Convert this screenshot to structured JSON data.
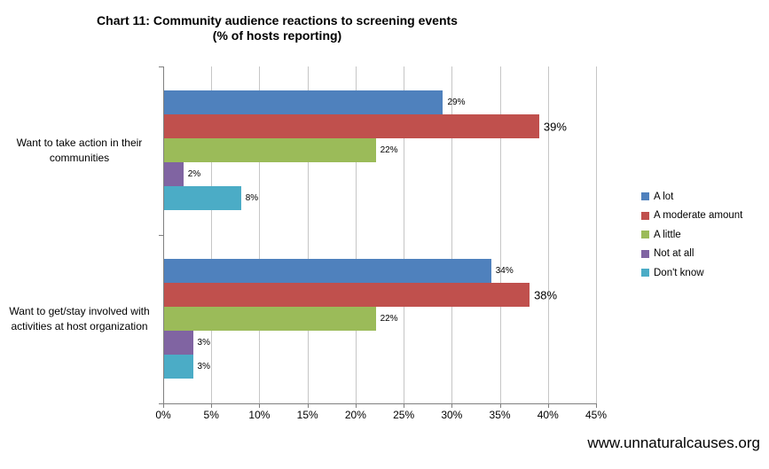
{
  "title": {
    "line1": "Chart 11: Community audience reactions to screening events",
    "line2": "(% of hosts reporting)"
  },
  "footer": {
    "url": "www.unnaturalcauses.org"
  },
  "chart_data": {
    "type": "bar",
    "orientation": "horizontal",
    "title": "Chart 11: Community audience reactions to screening events (% of hosts reporting)",
    "categories": [
      "Want to take action in their communities",
      "Want to get/stay involved with activities at host organization"
    ],
    "series": [
      {
        "name": "A lot",
        "color": "#4F81BD",
        "values": [
          29,
          34
        ]
      },
      {
        "name": "A moderate amount",
        "color": "#C0504D",
        "values": [
          39,
          38
        ]
      },
      {
        "name": "A little",
        "color": "#9BBB59",
        "values": [
          22,
          22
        ]
      },
      {
        "name": "Not at all",
        "color": "#8064A2",
        "values": [
          2,
          3
        ]
      },
      {
        "name": "Don't know",
        "color": "#4BACC6",
        "values": [
          8,
          3
        ]
      }
    ],
    "data_labels": [
      [
        "29%",
        "39%",
        "22%",
        "2%",
        "8%"
      ],
      [
        "34%",
        "38%",
        "22%",
        "3%",
        "3%"
      ]
    ],
    "x_axis": {
      "min": 0,
      "max": 45,
      "step": 5,
      "ticks": [
        "0%",
        "5%",
        "10%",
        "15%",
        "20%",
        "25%",
        "30%",
        "35%",
        "40%",
        "45%"
      ]
    },
    "legend": {
      "position": "right"
    },
    "grid": "vertical",
    "colors": {
      "axis": "#808080",
      "gridline": "#C6C6C6"
    }
  }
}
